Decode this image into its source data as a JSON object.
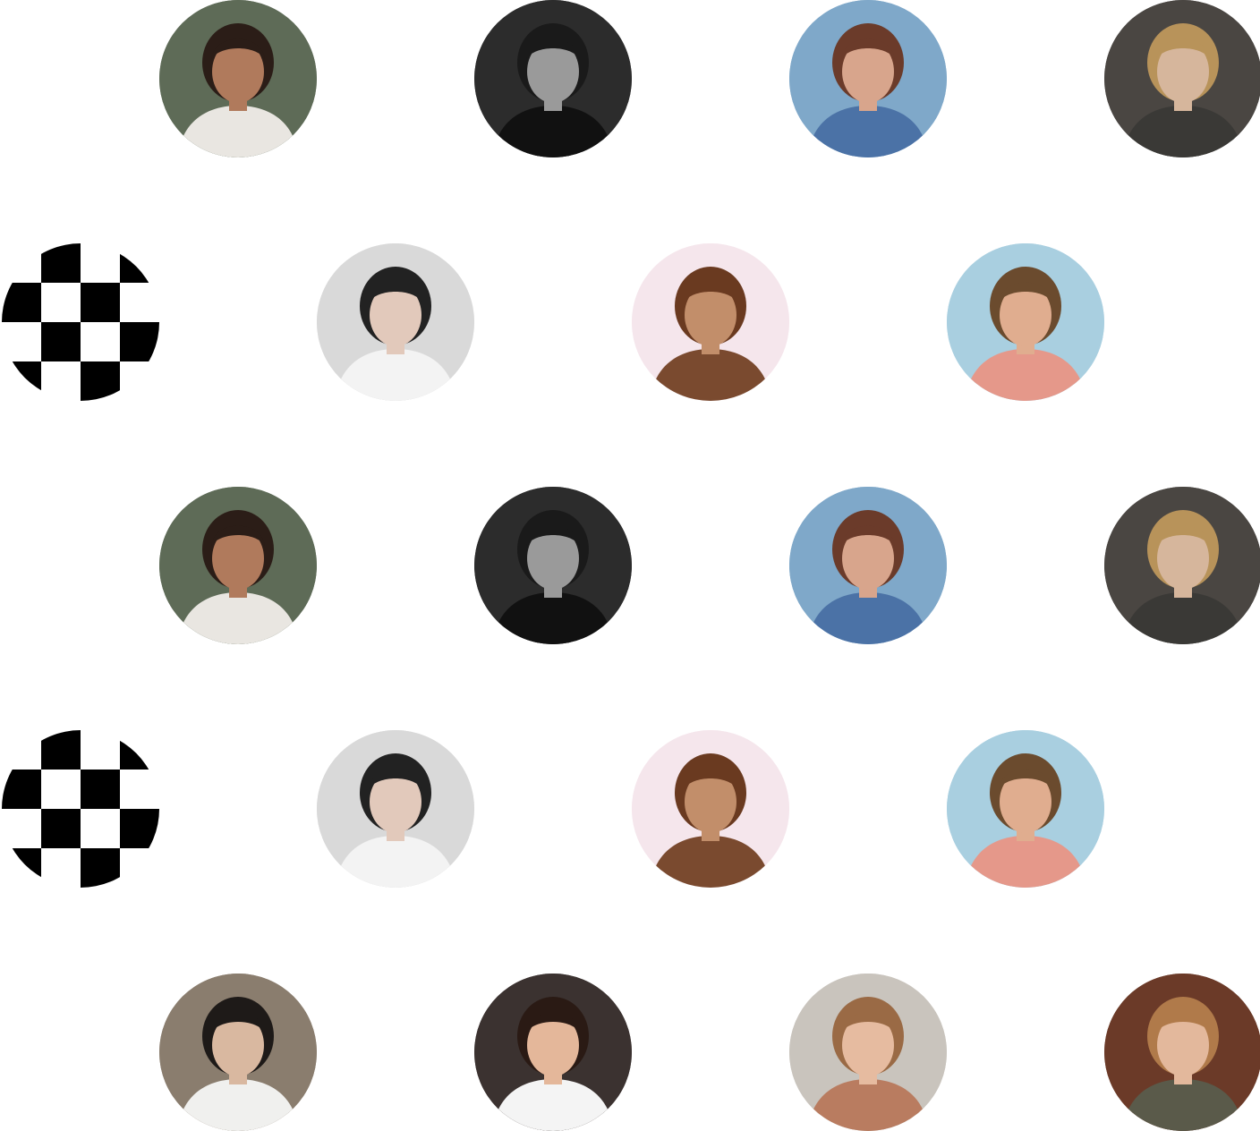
{
  "grid": {
    "avatars": [
      {
        "row": 1,
        "col": 1,
        "icon": "person-portrait-icon",
        "bg": "#5e6b57",
        "shirt": "#e9e6e1",
        "hair": "#2b1d17",
        "skin": "#b07a5c"
      },
      {
        "row": 1,
        "col": 2,
        "icon": "person-portrait-icon",
        "bg": "#2c2c2c",
        "shirt": "#111111",
        "hair": "#1a1a1a",
        "skin": "#9a9a9a"
      },
      {
        "row": 1,
        "col": 3,
        "icon": "person-portrait-icon",
        "bg": "#7fa8c9",
        "shirt": "#4b72a6",
        "hair": "#6b3b2a",
        "skin": "#d8a58c"
      },
      {
        "row": 1,
        "col": 4,
        "icon": "person-portrait-icon",
        "bg": "#4a4642",
        "shirt": "#3a3936",
        "hair": "#b8935a",
        "skin": "#d6b69c"
      },
      {
        "row": 2,
        "col": 0,
        "icon": "checkerboard-icon"
      },
      {
        "row": 2,
        "col": 1,
        "icon": "person-portrait-icon",
        "bg": "#d9d9d9",
        "shirt": "#f3f3f3",
        "hair": "#222222",
        "skin": "#e2c9bb"
      },
      {
        "row": 2,
        "col": 2,
        "icon": "person-portrait-icon",
        "bg": "#f5e6ec",
        "shirt": "#7a4a2f",
        "hair": "#6a3a20",
        "skin": "#c28e6a"
      },
      {
        "row": 2,
        "col": 3,
        "icon": "person-portrait-icon",
        "bg": "#a9cfe0",
        "shirt": "#e5988a",
        "hair": "#6b4b2e",
        "skin": "#e0ad8f"
      },
      {
        "row": 3,
        "col": 1,
        "icon": "person-portrait-icon",
        "bg": "#5e6b57",
        "shirt": "#e9e6e1",
        "hair": "#2b1d17",
        "skin": "#b07a5c"
      },
      {
        "row": 3,
        "col": 2,
        "icon": "person-portrait-icon",
        "bg": "#2c2c2c",
        "shirt": "#111111",
        "hair": "#1a1a1a",
        "skin": "#9a9a9a"
      },
      {
        "row": 3,
        "col": 3,
        "icon": "person-portrait-icon",
        "bg": "#7fa8c9",
        "shirt": "#4b72a6",
        "hair": "#6b3b2a",
        "skin": "#d8a58c"
      },
      {
        "row": 3,
        "col": 4,
        "icon": "person-portrait-icon",
        "bg": "#4a4642",
        "shirt": "#3a3936",
        "hair": "#b8935a",
        "skin": "#d6b69c"
      },
      {
        "row": 4,
        "col": 0,
        "icon": "checkerboard-icon"
      },
      {
        "row": 4,
        "col": 1,
        "icon": "person-portrait-icon",
        "bg": "#d9d9d9",
        "shirt": "#f3f3f3",
        "hair": "#222222",
        "skin": "#e2c9bb"
      },
      {
        "row": 4,
        "col": 2,
        "icon": "person-portrait-icon",
        "bg": "#f5e6ec",
        "shirt": "#7a4a2f",
        "hair": "#6a3a20",
        "skin": "#c28e6a"
      },
      {
        "row": 4,
        "col": 3,
        "icon": "person-portrait-icon",
        "bg": "#a9cfe0",
        "shirt": "#e5988a",
        "hair": "#6b4b2e",
        "skin": "#e0ad8f"
      },
      {
        "row": 5,
        "col": 1,
        "icon": "person-portrait-icon",
        "bg": "#8a7d6e",
        "shirt": "#f0f0ee",
        "hair": "#1e1a18",
        "skin": "#d9b8a0"
      },
      {
        "row": 5,
        "col": 2,
        "icon": "person-portrait-icon",
        "bg": "#3b3230",
        "shirt": "#f4f4f4",
        "hair": "#2a1a14",
        "skin": "#e4b79a"
      },
      {
        "row": 5,
        "col": 3,
        "icon": "person-portrait-icon",
        "bg": "#c9c4bd",
        "shirt": "#b97c60",
        "hair": "#9a6a45",
        "skin": "#e6bba0"
      },
      {
        "row": 5,
        "col": 4,
        "icon": "person-portrait-icon",
        "bg": "#6b3a28",
        "shirt": "#5a5a4a",
        "hair": "#b07a4a",
        "skin": "#e3b89c"
      }
    ]
  }
}
